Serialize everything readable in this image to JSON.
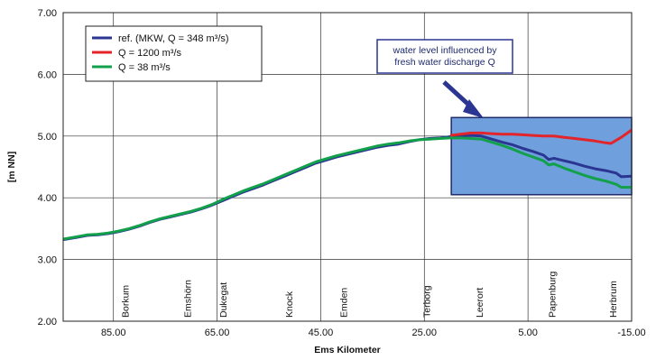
{
  "chart_data": {
    "type": "line",
    "xlabel": "Ems Kilometer",
    "ylabel": "[m NN]",
    "x_reversed": true,
    "xlim": [
      94.7,
      -15
    ],
    "ylim": [
      2.0,
      7.0
    ],
    "grid": true,
    "legend_position": "top-left",
    "x_ticks": [
      {
        "value": 85,
        "label": "85.00"
      },
      {
        "value": 65,
        "label": "65.00"
      },
      {
        "value": 45,
        "label": "45.00"
      },
      {
        "value": 25,
        "label": "25.00"
      },
      {
        "value": 5,
        "label": "5.00"
      },
      {
        "value": -15,
        "label": "-15.00"
      }
    ],
    "y_ticks": [
      {
        "value": 2,
        "label": "2.00"
      },
      {
        "value": 3,
        "label": "3.00"
      },
      {
        "value": 4,
        "label": "4.00"
      },
      {
        "value": 5,
        "label": "5.00"
      },
      {
        "value": 6,
        "label": "6.00"
      },
      {
        "value": 7,
        "label": "7.00"
      }
    ],
    "locations": [
      {
        "name": "Borkum",
        "km": 82.8
      },
      {
        "name": "Emshörn",
        "km": 70.8
      },
      {
        "name": "Dukegat",
        "km": 63.9
      },
      {
        "name": "Knock",
        "km": 51.2
      },
      {
        "name": "Emden",
        "km": 40.6
      },
      {
        "name": "Terborg",
        "km": 24.6
      },
      {
        "name": "Leerort",
        "km": 14.4
      },
      {
        "name": "Papenburg",
        "km": 0.4
      },
      {
        "name": "Herbrum",
        "km": -11.3
      }
    ],
    "annotation": {
      "lines": [
        "water level influenced by",
        "fresh water discharge Q"
      ],
      "region": {
        "x_from": 19.8,
        "x_to": -15,
        "y_from": 4.05,
        "y_to": 5.3
      }
    },
    "series": [
      {
        "name": "ref. (MKW, Q = 348 m³/s)",
        "color": "#2b3592",
        "points": [
          [
            94.7,
            3.32
          ],
          [
            92,
            3.36
          ],
          [
            90,
            3.39
          ],
          [
            88,
            3.4
          ],
          [
            86,
            3.42
          ],
          [
            84,
            3.45
          ],
          [
            82,
            3.49
          ],
          [
            80,
            3.54
          ],
          [
            78,
            3.6
          ],
          [
            76,
            3.65
          ],
          [
            74,
            3.69
          ],
          [
            72,
            3.73
          ],
          [
            70,
            3.77
          ],
          [
            68,
            3.82
          ],
          [
            66,
            3.88
          ],
          [
            64,
            3.95
          ],
          [
            62,
            4.02
          ],
          [
            60,
            4.09
          ],
          [
            58,
            4.15
          ],
          [
            56,
            4.21
          ],
          [
            54,
            4.28
          ],
          [
            52,
            4.35
          ],
          [
            50,
            4.42
          ],
          [
            48,
            4.49
          ],
          [
            46,
            4.56
          ],
          [
            44,
            4.61
          ],
          [
            42,
            4.66
          ],
          [
            40,
            4.7
          ],
          [
            38,
            4.74
          ],
          [
            36,
            4.78
          ],
          [
            34,
            4.82
          ],
          [
            32,
            4.85
          ],
          [
            30,
            4.87
          ],
          [
            28,
            4.91
          ],
          [
            26,
            4.94
          ],
          [
            24,
            4.96
          ],
          [
            22,
            4.97
          ],
          [
            20,
            4.99
          ],
          [
            18,
            5.0
          ],
          [
            16,
            5.01
          ],
          [
            14,
            5.0
          ],
          [
            12,
            4.95
          ],
          [
            10,
            4.9
          ],
          [
            8,
            4.86
          ],
          [
            6,
            4.8
          ],
          [
            4,
            4.75
          ],
          [
            2,
            4.69
          ],
          [
            1,
            4.62
          ],
          [
            0,
            4.64
          ],
          [
            -2,
            4.6
          ],
          [
            -4,
            4.56
          ],
          [
            -6,
            4.51
          ],
          [
            -8,
            4.47
          ],
          [
            -10,
            4.44
          ],
          [
            -12,
            4.4
          ],
          [
            -13,
            4.34
          ],
          [
            -15,
            4.35
          ]
        ]
      },
      {
        "name": "Q = 1200 m³/s",
        "color": "#e3242b",
        "points": [
          [
            20,
            5.01
          ],
          [
            18,
            5.03
          ],
          [
            16,
            5.05
          ],
          [
            14,
            5.05
          ],
          [
            12,
            5.04
          ],
          [
            10,
            5.03
          ],
          [
            8,
            5.03
          ],
          [
            6,
            5.02
          ],
          [
            4,
            5.01
          ],
          [
            2,
            5.0
          ],
          [
            0,
            5.0
          ],
          [
            -2,
            4.98
          ],
          [
            -4,
            4.96
          ],
          [
            -6,
            4.94
          ],
          [
            -8,
            4.92
          ],
          [
            -10,
            4.89
          ],
          [
            -11,
            4.88
          ],
          [
            -12,
            4.93
          ],
          [
            -13,
            4.98
          ],
          [
            -14,
            5.04
          ],
          [
            -15,
            5.1
          ]
        ]
      },
      {
        "name": "Q = 38 m³/s",
        "color": "#12a04b",
        "points": [
          [
            94.7,
            3.33
          ],
          [
            92,
            3.37
          ],
          [
            90,
            3.4
          ],
          [
            88,
            3.41
          ],
          [
            86,
            3.43
          ],
          [
            84,
            3.46
          ],
          [
            82,
            3.5
          ],
          [
            80,
            3.55
          ],
          [
            78,
            3.61
          ],
          [
            76,
            3.66
          ],
          [
            74,
            3.7
          ],
          [
            72,
            3.74
          ],
          [
            70,
            3.78
          ],
          [
            68,
            3.83
          ],
          [
            66,
            3.89
          ],
          [
            64,
            3.97
          ],
          [
            62,
            4.04
          ],
          [
            60,
            4.11
          ],
          [
            58,
            4.17
          ],
          [
            56,
            4.23
          ],
          [
            54,
            4.3
          ],
          [
            52,
            4.37
          ],
          [
            50,
            4.44
          ],
          [
            48,
            4.51
          ],
          [
            46,
            4.58
          ],
          [
            44,
            4.63
          ],
          [
            42,
            4.68
          ],
          [
            40,
            4.72
          ],
          [
            38,
            4.76
          ],
          [
            36,
            4.8
          ],
          [
            34,
            4.84
          ],
          [
            32,
            4.87
          ],
          [
            30,
            4.89
          ],
          [
            28,
            4.92
          ],
          [
            26,
            4.94
          ],
          [
            24,
            4.95
          ],
          [
            22,
            4.96
          ],
          [
            20,
            4.97
          ],
          [
            18,
            4.97
          ],
          [
            16,
            4.96
          ],
          [
            14,
            4.95
          ],
          [
            12,
            4.9
          ],
          [
            10,
            4.85
          ],
          [
            8,
            4.79
          ],
          [
            6,
            4.72
          ],
          [
            4,
            4.66
          ],
          [
            2,
            4.6
          ],
          [
            1,
            4.53
          ],
          [
            0,
            4.55
          ],
          [
            -2,
            4.48
          ],
          [
            -4,
            4.42
          ],
          [
            -6,
            4.36
          ],
          [
            -8,
            4.31
          ],
          [
            -10,
            4.27
          ],
          [
            -12,
            4.22
          ],
          [
            -13,
            4.17
          ],
          [
            -15,
            4.17
          ]
        ]
      }
    ]
  }
}
